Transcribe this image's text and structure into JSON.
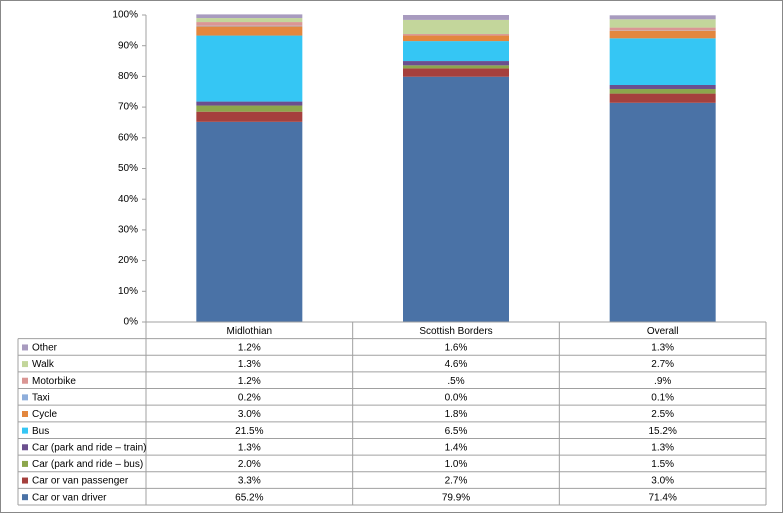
{
  "chart_data": {
    "type": "stacked_bar",
    "categories": [
      "Midlothian",
      "Scottish Borders",
      "Overall"
    ],
    "ylim": [
      0,
      100
    ],
    "yticks": [
      {
        "value": 0,
        "label": "0%"
      },
      {
        "value": 10,
        "label": "10%"
      },
      {
        "value": 20,
        "label": "20%"
      },
      {
        "value": 30,
        "label": "30%"
      },
      {
        "value": 40,
        "label": "40%"
      },
      {
        "value": 50,
        "label": "50%"
      },
      {
        "value": 60,
        "label": "60%"
      },
      {
        "value": 70,
        "label": "70%"
      },
      {
        "value": 80,
        "label": "80%"
      },
      {
        "value": 90,
        "label": "90%"
      },
      {
        "value": 100,
        "label": "100%"
      }
    ],
    "grid": false,
    "series": [
      {
        "name": "Car or van driver",
        "color": "#4a72a6",
        "values": [
          65.2,
          79.9,
          71.4
        ],
        "value_labels": [
          "65.2%",
          "79.9%",
          "71.4%"
        ]
      },
      {
        "name": "Car or van passenger",
        "color": "#a5403d",
        "values": [
          3.3,
          2.7,
          3.0
        ],
        "value_labels": [
          "3.3%",
          "2.7%",
          "3.0%"
        ]
      },
      {
        "name": "Car (park and ride – bus)",
        "color": "#8ca64c",
        "values": [
          2.0,
          1.0,
          1.5
        ],
        "value_labels": [
          "2.0%",
          "1.0%",
          "1.5%"
        ]
      },
      {
        "name": "Car (park and ride – train)",
        "color": "#6b4f8e",
        "values": [
          1.3,
          1.4,
          1.3
        ],
        "value_labels": [
          "1.3%",
          "1.4%",
          "1.3%"
        ]
      },
      {
        "name": "Bus",
        "color": "#35c6f4",
        "values": [
          21.5,
          6.5,
          15.2
        ],
        "value_labels": [
          "21.5%",
          "6.5%",
          "15.2%"
        ]
      },
      {
        "name": "Cycle",
        "color": "#e3873e",
        "values": [
          3.0,
          1.8,
          2.5
        ],
        "value_labels": [
          "3.0%",
          "1.8%",
          "2.5%"
        ]
      },
      {
        "name": "Taxi",
        "color": "#8eaedb",
        "values": [
          0.2,
          0.0,
          0.1
        ],
        "value_labels": [
          "0.2%",
          "0.0%",
          "0.1%"
        ]
      },
      {
        "name": "Motorbike",
        "color": "#da9694",
        "values": [
          1.2,
          0.5,
          0.9
        ],
        "value_labels": [
          "1.2%",
          ".5%",
          ".9%"
        ]
      },
      {
        "name": "Walk",
        "color": "#c3d69b",
        "values": [
          1.3,
          4.6,
          2.7
        ],
        "value_labels": [
          "1.3%",
          "4.6%",
          "2.7%"
        ]
      },
      {
        "name": "Other",
        "color": "#a89bbf",
        "values": [
          1.2,
          1.6,
          1.3
        ],
        "value_labels": [
          "1.2%",
          "1.6%",
          "1.3%"
        ]
      }
    ]
  }
}
